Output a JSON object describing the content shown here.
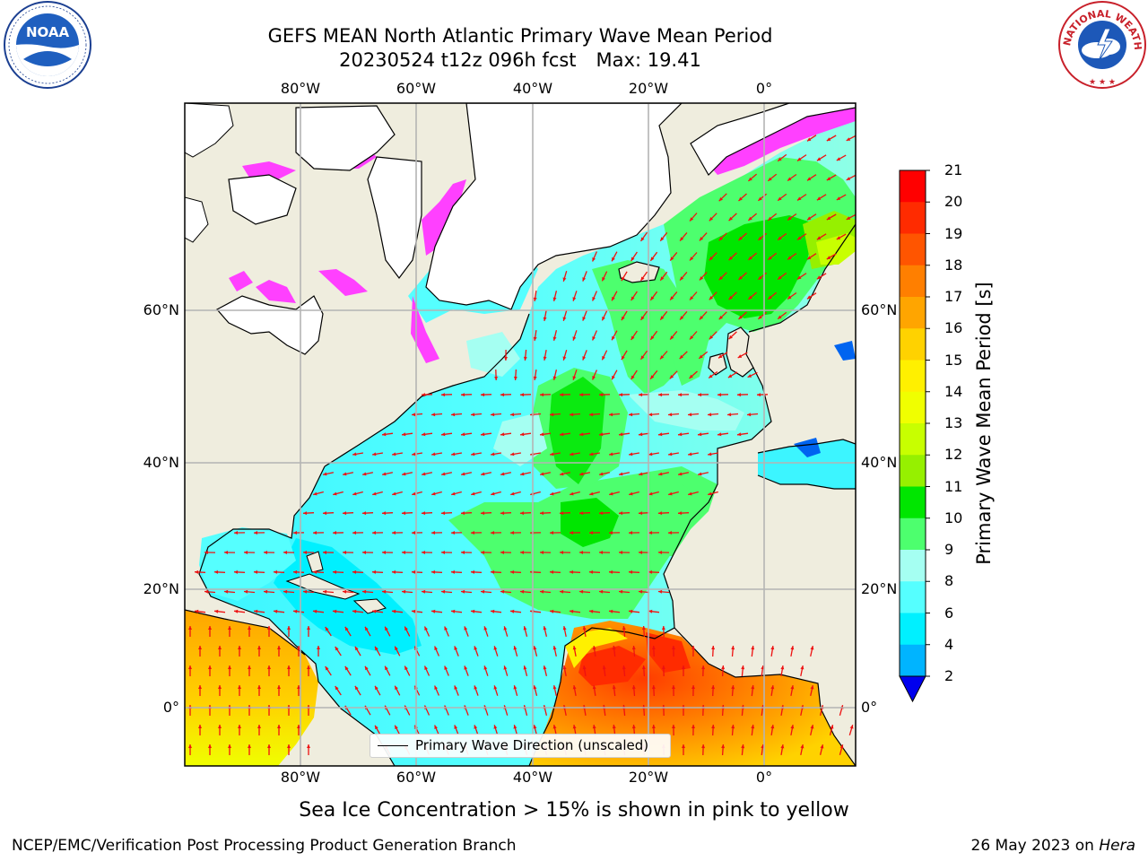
{
  "header": {
    "title_line1": "GEFS MEAN North Atlantic Primary Wave Mean Period",
    "title_line2_run": "20230524 t12z 096h fcst",
    "title_line2_max": "Max: 19.41"
  },
  "logos": {
    "left": {
      "icon": "noaa-logo",
      "text": "NOAA"
    },
    "right": {
      "icon": "nws-logo",
      "ring_text": "NATIONAL WEATHER SERVICE"
    }
  },
  "map": {
    "lon_labels": [
      "80°W",
      "60°W",
      "40°W",
      "20°W",
      "0°"
    ],
    "lat_labels": [
      "60°N",
      "40°N",
      "20°N",
      "0°"
    ],
    "lon_range": [
      -100,
      15
    ],
    "lat_range": [
      -8,
      78
    ],
    "grid": true,
    "legend": {
      "label": "Primary Wave Direction (unscaled)",
      "placement": "bottom-center"
    },
    "colors": {
      "land": "#efedde",
      "sea_ice": "#ff40ff",
      "arrows": "#ee1111",
      "grid": "#b4b4b4"
    }
  },
  "colorbar": {
    "title": "Primary Wave Mean Period [s]",
    "ticks": [
      "21",
      "20",
      "19",
      "18",
      "17",
      "16",
      "15",
      "14",
      "13",
      "12",
      "11",
      "10",
      "9",
      "8",
      "6",
      "4",
      "2"
    ],
    "tick_values": [
      21,
      20,
      19,
      18,
      17,
      16,
      15,
      14,
      13,
      12,
      11,
      10,
      9,
      8,
      6,
      4,
      2
    ],
    "colors_top_to_bottom": [
      "#ff0000",
      "#ff2b00",
      "#ff5500",
      "#ff7f00",
      "#ffa500",
      "#ffd200",
      "#fff000",
      "#f0ff00",
      "#c8ff00",
      "#96f000",
      "#00e600",
      "#4dff6e",
      "#a5fff2",
      "#55ffff",
      "#00f0ff",
      "#00b4ff",
      "#0064f0"
    ],
    "under_color": "#0000ee"
  },
  "chart_data": {
    "type": "heatmap",
    "title": "GEFS MEAN North Atlantic Primary Wave Mean Period",
    "subtitle": "20230524 t12z 096h fcst   Max: 19.41",
    "variable": "Primary Wave Mean Period [s]",
    "max_value": 19.41,
    "xlabel": "",
    "ylabel": "",
    "xlim": [
      -100,
      15
    ],
    "ylim": [
      -8,
      78
    ],
    "x_ticks": [
      -80,
      -60,
      -40,
      -20,
      0
    ],
    "y_ticks": [
      0,
      20,
      40,
      60
    ],
    "scale_bounds": [
      2,
      4,
      6,
      8,
      9,
      10,
      11,
      12,
      13,
      14,
      15,
      16,
      17,
      18,
      19,
      20,
      21
    ]
  },
  "footer": {
    "subtitle": "Sea Ice Concentration > 15% is shown in pink to yellow",
    "credit": "NCEP/EMC/Verification Post Processing Product Generation Branch",
    "date_prefix": "26 May 2023 on ",
    "host": "Hera"
  }
}
